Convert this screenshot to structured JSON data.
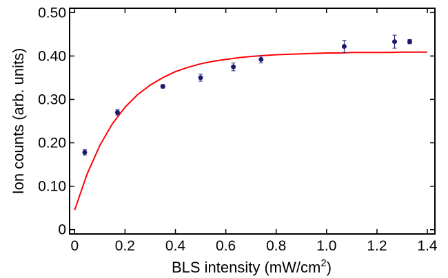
{
  "chart_data": {
    "type": "scatter",
    "title": "",
    "xlabel": "BLS intensity (mW/cm",
    "xlabel_superscript": "2",
    "xlabel_suffix": ")",
    "ylabel": "Ion counts (arb. units)",
    "xlim": [
      -0.02,
      1.43
    ],
    "ylim": [
      -0.01,
      0.51
    ],
    "x_ticks": [
      0.0,
      0.2,
      0.4,
      0.6,
      0.8,
      1.0,
      1.2,
      1.4
    ],
    "x_tick_labels": [
      "0",
      "0.2",
      "0.4",
      "0.6",
      "0.8",
      "1.0",
      "1.2",
      "1.4"
    ],
    "y_ticks": [
      0.0,
      0.1,
      0.2,
      0.3,
      0.4,
      0.5
    ],
    "y_tick_labels": [
      "0",
      "0.10",
      "0.20",
      "0.30",
      "0.40",
      "0.50"
    ],
    "grid": false,
    "series": [
      {
        "kind": "points-with-error",
        "color": "#1c1a6e",
        "x": [
          0.04,
          0.17,
          0.35,
          0.5,
          0.63,
          0.74,
          1.07,
          1.27,
          1.33
        ],
        "y": [
          0.178,
          0.27,
          0.33,
          0.35,
          0.375,
          0.392,
          0.422,
          0.433,
          0.433
        ],
        "yerr": [
          0.006,
          0.006,
          0.004,
          0.008,
          0.009,
          0.008,
          0.014,
          0.015,
          0.005
        ]
      },
      {
        "kind": "fit-curve",
        "color": "#ff0000",
        "x": [
          0.0,
          0.05,
          0.1,
          0.15,
          0.2,
          0.25,
          0.3,
          0.35,
          0.4,
          0.45,
          0.5,
          0.55,
          0.6,
          0.65,
          0.7,
          0.75,
          0.8,
          0.85,
          0.9,
          0.95,
          1.0,
          1.05,
          1.1,
          1.15,
          1.2,
          1.25,
          1.3,
          1.35,
          1.4
        ],
        "y": [
          0.045,
          0.129,
          0.194,
          0.244,
          0.282,
          0.311,
          0.333,
          0.35,
          0.364,
          0.374,
          0.382,
          0.388,
          0.392,
          0.396,
          0.399,
          0.401,
          0.403,
          0.404,
          0.405,
          0.406,
          0.407,
          0.407,
          0.408,
          0.408,
          0.408,
          0.408,
          0.409,
          0.409,
          0.409
        ]
      }
    ]
  }
}
